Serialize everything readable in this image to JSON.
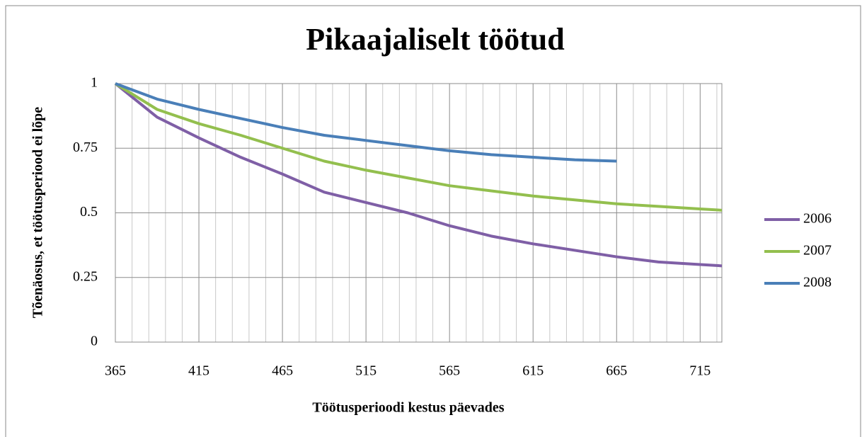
{
  "chart_data": {
    "type": "line",
    "title": "Pikaajaliselt töötud",
    "xlabel": "Töötusperioodi kestus päevades",
    "ylabel": "Tõenäosus, et töötusperiood ei lõpe",
    "x": [
      365,
      390,
      415,
      440,
      465,
      490,
      515,
      540,
      565,
      590,
      615,
      640,
      665,
      690,
      715,
      728
    ],
    "series": [
      {
        "name": "2006",
        "color": "#7f5fa6",
        "values": [
          1,
          0.87,
          0.79,
          0.715,
          0.65,
          0.58,
          0.54,
          0.5,
          0.45,
          0.41,
          0.38,
          0.355,
          0.33,
          0.31,
          0.3,
          0.295
        ]
      },
      {
        "name": "2007",
        "color": "#93bf4e",
        "values": [
          1,
          0.9,
          0.845,
          0.8,
          0.75,
          0.7,
          0.665,
          0.635,
          0.605,
          0.585,
          0.565,
          0.55,
          0.535,
          0.525,
          0.515,
          0.51
        ]
      },
      {
        "name": "2008",
        "color": "#4a7fb8",
        "values": [
          1,
          0.94,
          0.9,
          0.865,
          0.83,
          0.8,
          0.78,
          0.76,
          0.74,
          0.725,
          0.715,
          0.705,
          0.7,
          null,
          null,
          null
        ]
      }
    ],
    "xlim": [
      365,
      728
    ],
    "xticks": [
      365,
      415,
      465,
      515,
      565,
      615,
      665,
      715
    ],
    "xminorticks": [
      375,
      385,
      395,
      405,
      425,
      435,
      445,
      455,
      475,
      485,
      495,
      505,
      525,
      535,
      545,
      555,
      575,
      585,
      595,
      605,
      625,
      635,
      645,
      655,
      675,
      685,
      695,
      705,
      725
    ],
    "ylim": [
      0,
      1
    ],
    "yticks": [
      0,
      0.25,
      0.5,
      0.75,
      1
    ],
    "grid": true,
    "legend": "right"
  }
}
